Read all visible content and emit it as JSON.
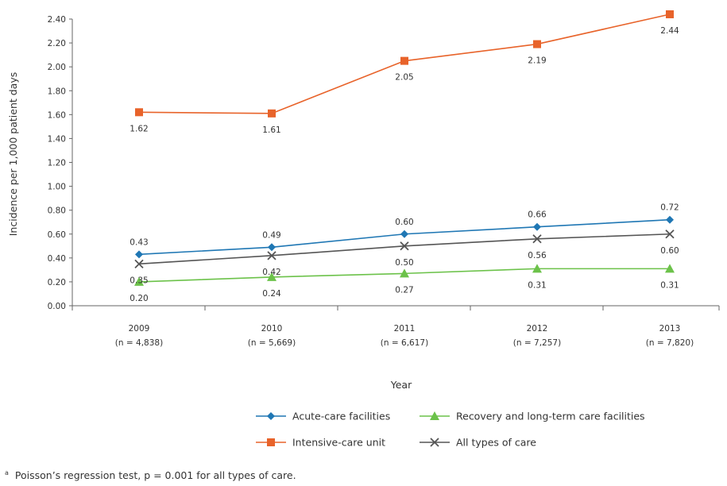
{
  "chart_data": {
    "type": "line",
    "title": "",
    "xlabel": "Year",
    "ylabel": "Incidence per 1,000 patient days",
    "ylim": [
      0,
      2.4
    ],
    "y_ticks": [
      "0.00",
      "0.20",
      "0.40",
      "0.60",
      "0.80",
      "1.00",
      "1.20",
      "1.40",
      "1.60",
      "1.80",
      "2.00",
      "2.20",
      "2.40"
    ],
    "categories": [
      "2009",
      "2010",
      "2011",
      "2012",
      "2013"
    ],
    "category_sublabels": [
      "(n = 4,838)",
      "(n = 5,669)",
      "(n = 6,617)",
      "(n = 7,257)",
      "(n = 7,820)"
    ],
    "grid": false,
    "legend_position": "bottom",
    "series": [
      {
        "name": "Acute-care facilities",
        "color": "#1f77b4",
        "marker": "diamond",
        "values": [
          0.43,
          0.49,
          0.6,
          0.66,
          0.72
        ],
        "labels": [
          "0.43",
          "0.49",
          "0.60",
          "0.66",
          "0.72"
        ],
        "label_side": "above"
      },
      {
        "name": "Recovery and long-term care facilities",
        "color": "#6cc24a",
        "marker": "triangle",
        "values": [
          0.2,
          0.24,
          0.27,
          0.31,
          0.31
        ],
        "labels": [
          "0.20",
          "0.24",
          "0.27",
          "0.31",
          "0.31"
        ],
        "label_side": "below"
      },
      {
        "name": "Intensive-care unit",
        "color": "#e8632a",
        "marker": "square",
        "values": [
          1.62,
          1.61,
          2.05,
          2.19,
          2.44
        ],
        "labels": [
          "1.62",
          "1.61",
          "2.05",
          "2.19",
          "2.44"
        ],
        "label_side": "below"
      },
      {
        "name": "All types of care",
        "color": "#555555",
        "marker": "x",
        "values": [
          0.35,
          0.42,
          0.5,
          0.56,
          0.6
        ],
        "labels": [
          "0.35",
          "0.42",
          "0.50",
          "0.56",
          "0.60"
        ],
        "label_side": "below"
      }
    ]
  },
  "footnote": {
    "marker": "a",
    "text": "Poisson’s regression test, p = 0.001 for all types of care."
  }
}
